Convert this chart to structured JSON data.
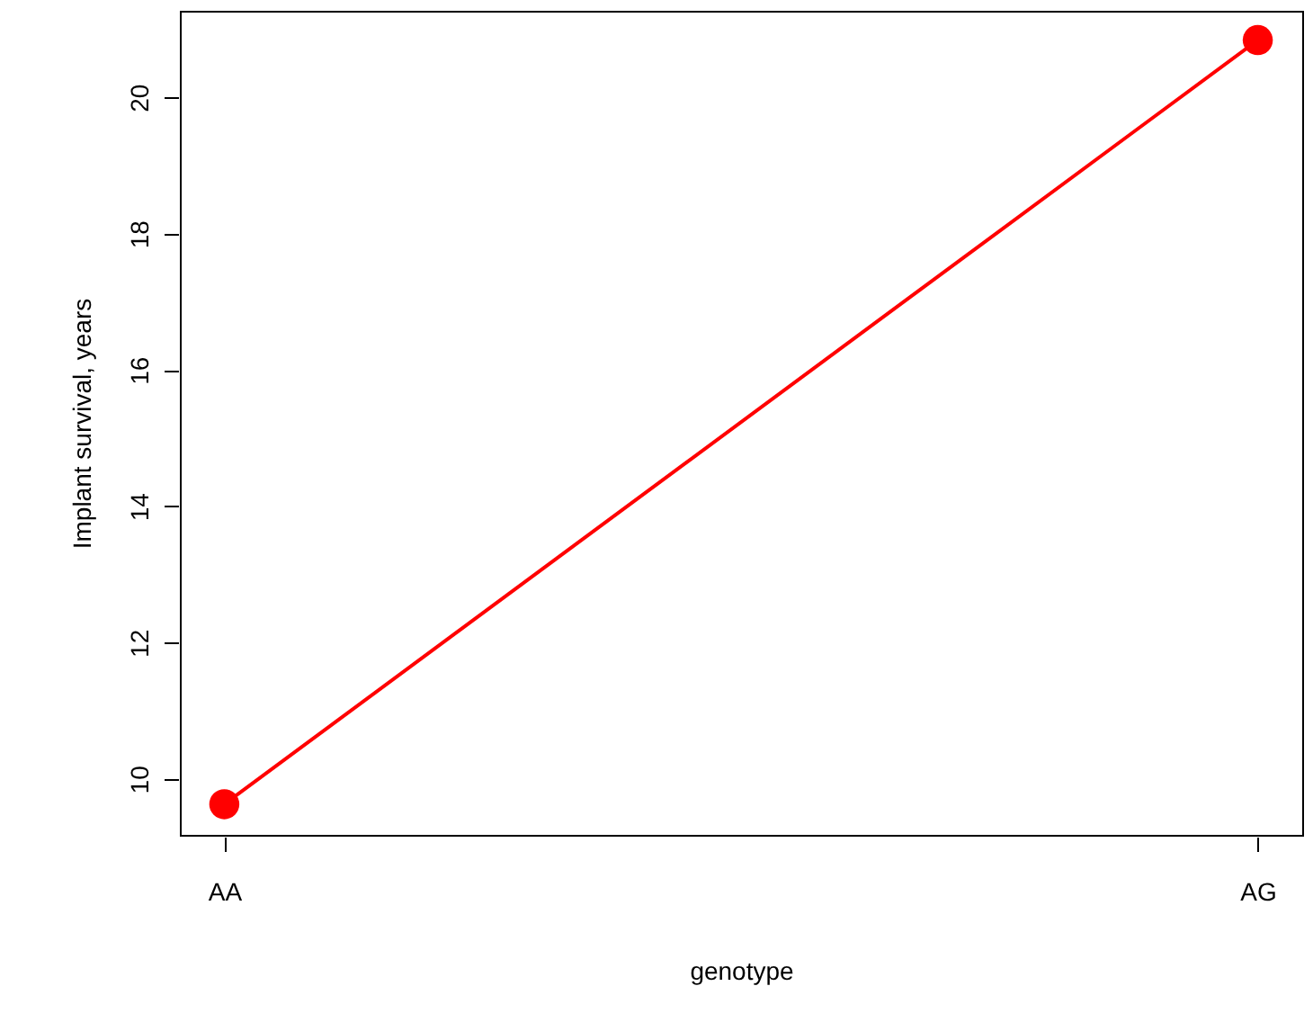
{
  "chart_data": {
    "type": "line",
    "categories": [
      "AA",
      "AG"
    ],
    "series": [
      {
        "color": "#ff0000",
        "values": [
          9.63,
          20.84
        ]
      }
    ],
    "xlabel": "genotype",
    "ylabel": "Implant survival, years",
    "ylim": [
      9.18,
      21.27
    ],
    "yticks": [
      10,
      12,
      14,
      16,
      18,
      20
    ],
    "marker": "circle",
    "line_style": "solid"
  }
}
